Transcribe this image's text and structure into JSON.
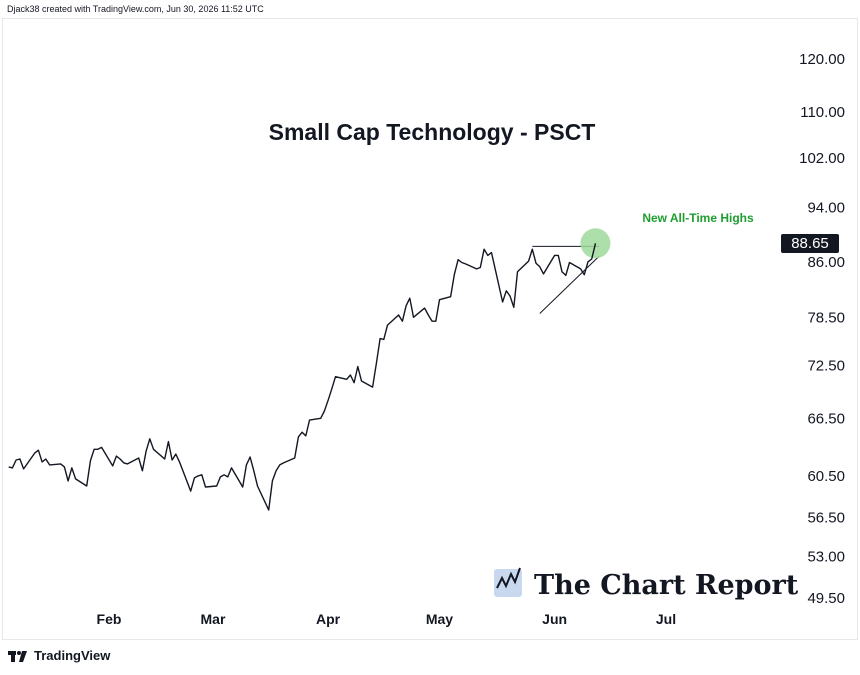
{
  "header": {
    "credit": "Djack38 created with TradingView.com, Jun 30, 2026 11:52 UTC"
  },
  "footer": {
    "brand": "TradingView"
  },
  "watermark": {
    "text": "The Chart Report",
    "icon": "chart-report-logo-icon"
  },
  "annotation": {
    "text": "New All-Time Highs",
    "color": "#1e9e2e"
  },
  "price_badge": {
    "value": "88.65",
    "background": "#131722",
    "text_color": "#ffffff"
  },
  "colors": {
    "line": "#131722",
    "highlight": "#9fd99b",
    "grid": "#eeeeee"
  },
  "chart_data": {
    "type": "line",
    "title": "Small Cap Technology - PSCT",
    "y_scale": "log",
    "ylim": [
      47.5,
      126
    ],
    "y_ticks": [
      "120.00",
      "110.00",
      "102.00",
      "94.00",
      "86.00",
      "78.50",
      "72.50",
      "66.50",
      "60.50",
      "56.50",
      "53.00",
      "49.50"
    ],
    "x_ticks": [
      {
        "label": "Feb",
        "date": "2026-02-01"
      },
      {
        "label": "Mar",
        "date": "2026-03-01"
      },
      {
        "label": "Apr",
        "date": "2026-04-01"
      },
      {
        "label": "May",
        "date": "2026-05-01"
      },
      {
        "label": "Jun",
        "date": "2026-06-01"
      },
      {
        "label": "Jul",
        "date": "2026-07-01"
      }
    ],
    "xlim": [
      "2026-01-04",
      "2026-07-29"
    ],
    "series": [
      {
        "name": "",
        "points": [
          [
            "2026-01-05",
            61.4
          ],
          [
            "2026-01-06",
            61.3
          ],
          [
            "2026-01-07",
            62.1
          ],
          [
            "2026-01-08",
            62.2
          ],
          [
            "2026-01-09",
            61.2
          ],
          [
            "2026-01-12",
            62.8
          ],
          [
            "2026-01-13",
            63.1
          ],
          [
            "2026-01-14",
            61.9
          ],
          [
            "2026-01-15",
            62.2
          ],
          [
            "2026-01-16",
            61.6
          ],
          [
            "2026-01-19",
            61.7
          ],
          [
            "2026-01-20",
            61.4
          ],
          [
            "2026-01-21",
            60.0
          ],
          [
            "2026-01-22",
            61.3
          ],
          [
            "2026-01-23",
            60.2
          ],
          [
            "2026-01-26",
            59.5
          ],
          [
            "2026-01-27",
            62.0
          ],
          [
            "2026-01-28",
            63.2
          ],
          [
            "2026-01-29",
            63.2
          ],
          [
            "2026-01-30",
            63.4
          ],
          [
            "2026-02-02",
            61.5
          ],
          [
            "2026-02-03",
            62.5
          ],
          [
            "2026-02-04",
            62.2
          ],
          [
            "2026-02-05",
            61.8
          ],
          [
            "2026-02-06",
            61.7
          ],
          [
            "2026-02-09",
            62.3
          ],
          [
            "2026-02-10",
            61.0
          ],
          [
            "2026-02-11",
            63.0
          ],
          [
            "2026-02-12",
            64.3
          ],
          [
            "2026-02-13",
            63.2
          ],
          [
            "2026-02-16",
            62.2
          ],
          [
            "2026-02-17",
            64.0
          ],
          [
            "2026-02-18",
            62.1
          ],
          [
            "2026-02-19",
            62.7
          ],
          [
            "2026-02-20",
            61.9
          ],
          [
            "2026-02-23",
            59.0
          ],
          [
            "2026-02-24",
            60.3
          ],
          [
            "2026-02-25",
            60.5
          ],
          [
            "2026-02-26",
            60.6
          ],
          [
            "2026-02-27",
            59.4
          ],
          [
            "2026-03-02",
            59.5
          ],
          [
            "2026-03-03",
            60.4
          ],
          [
            "2026-03-04",
            60.6
          ],
          [
            "2026-03-05",
            60.4
          ],
          [
            "2026-03-06",
            61.3
          ],
          [
            "2026-03-09",
            59.4
          ],
          [
            "2026-03-10",
            61.6
          ],
          [
            "2026-03-11",
            62.4
          ],
          [
            "2026-03-12",
            61.0
          ],
          [
            "2026-03-13",
            59.5
          ],
          [
            "2026-03-16",
            57.2
          ],
          [
            "2026-03-17",
            60.0
          ],
          [
            "2026-03-18",
            61.0
          ],
          [
            "2026-03-19",
            61.6
          ],
          [
            "2026-03-20",
            61.8
          ],
          [
            "2026-03-23",
            62.3
          ],
          [
            "2026-03-24",
            64.5
          ],
          [
            "2026-03-25",
            65.0
          ],
          [
            "2026-03-26",
            64.6
          ],
          [
            "2026-03-27",
            66.3
          ],
          [
            "2026-03-30",
            66.5
          ],
          [
            "2026-03-31",
            67.3
          ],
          [
            "2026-04-01",
            68.5
          ],
          [
            "2026-04-02",
            69.8
          ],
          [
            "2026-04-03",
            71.2
          ],
          [
            "2026-04-06",
            70.9
          ],
          [
            "2026-04-07",
            71.4
          ],
          [
            "2026-04-08",
            70.5
          ],
          [
            "2026-04-09",
            72.4
          ],
          [
            "2026-04-10",
            70.7
          ],
          [
            "2026-04-13",
            70.0
          ],
          [
            "2026-04-14",
            72.8
          ],
          [
            "2026-04-15",
            75.8
          ],
          [
            "2026-04-16",
            75.7
          ],
          [
            "2026-04-17",
            77.5
          ],
          [
            "2026-04-20",
            78.8
          ],
          [
            "2026-04-21",
            78.0
          ],
          [
            "2026-04-22",
            80.0
          ],
          [
            "2026-04-23",
            81.0
          ],
          [
            "2026-04-24",
            78.5
          ],
          [
            "2026-04-27",
            79.7
          ],
          [
            "2026-04-28",
            78.8
          ],
          [
            "2026-04-29",
            78.0
          ],
          [
            "2026-04-30",
            78.0
          ],
          [
            "2026-05-01",
            80.8
          ],
          [
            "2026-05-04",
            81.2
          ],
          [
            "2026-05-05",
            84.2
          ],
          [
            "2026-05-06",
            86.3
          ],
          [
            "2026-05-07",
            85.9
          ],
          [
            "2026-05-08",
            85.7
          ],
          [
            "2026-05-11",
            85.0
          ],
          [
            "2026-05-12",
            85.2
          ],
          [
            "2026-05-13",
            87.8
          ],
          [
            "2026-05-14",
            86.9
          ],
          [
            "2026-05-15",
            87.3
          ],
          [
            "2026-05-18",
            80.5
          ],
          [
            "2026-05-19",
            82.0
          ],
          [
            "2026-05-20",
            81.3
          ],
          [
            "2026-05-21",
            79.8
          ],
          [
            "2026-05-22",
            84.6
          ],
          [
            "2026-05-25",
            86.1
          ],
          [
            "2026-05-26",
            87.8
          ],
          [
            "2026-05-27",
            85.8
          ],
          [
            "2026-05-28",
            85.3
          ],
          [
            "2026-05-29",
            84.3
          ],
          [
            "2026-06-01",
            86.9
          ],
          [
            "2026-06-02",
            86.9
          ],
          [
            "2026-06-03",
            84.6
          ],
          [
            "2026-06-04",
            84.1
          ],
          [
            "2026-06-05",
            85.9
          ],
          [
            "2026-06-08",
            85.0
          ],
          [
            "2026-06-09",
            84.2
          ],
          [
            "2026-06-10",
            86.0
          ],
          [
            "2026-06-11",
            86.4
          ],
          [
            "2026-06-12",
            88.65
          ]
        ]
      }
    ],
    "trendlines": [
      {
        "name": "resistance",
        "from": [
          "2026-05-26",
          88.2
        ],
        "to": [
          "2026-06-13",
          88.2
        ]
      },
      {
        "name": "rising-support",
        "from": [
          "2026-05-28",
          79.0
        ],
        "to": [
          "2026-06-13",
          86.8
        ]
      }
    ],
    "grid": false
  }
}
